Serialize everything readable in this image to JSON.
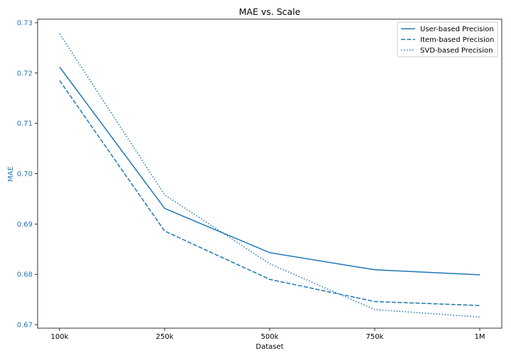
{
  "colors": {
    "series": "#1f77b4",
    "ytext": "#1f77b4",
    "axis": "#000000",
    "legend_border": "#cccccc"
  },
  "chart_data": {
    "type": "line",
    "title": "MAE vs. Scale",
    "xlabel": "Dataset",
    "ylabel": "MAE",
    "categories": [
      "100k",
      "250k",
      "500k",
      "750k",
      "1M"
    ],
    "ylim": [
      0.6693,
      0.7307
    ],
    "yticks": [
      0.67,
      0.68,
      0.69,
      0.7,
      0.71,
      0.72,
      0.73
    ],
    "ytick_labels": [
      "0.67",
      "0.68",
      "0.69",
      "0.70",
      "0.71",
      "0.72",
      "0.73"
    ],
    "grid": false,
    "legend_position": "top-right",
    "series": [
      {
        "name": "User-based Precision",
        "style": "solid",
        "values": [
          0.7212,
          0.6931,
          0.6843,
          0.6809,
          0.6799
        ]
      },
      {
        "name": "Item-based Precision",
        "style": "dashed",
        "values": [
          0.7185,
          0.6886,
          0.679,
          0.6746,
          0.6738
        ]
      },
      {
        "name": "SVD-based Precision",
        "style": "dotted",
        "values": [
          0.7278,
          0.6958,
          0.6821,
          0.673,
          0.6715
        ]
      }
    ]
  }
}
